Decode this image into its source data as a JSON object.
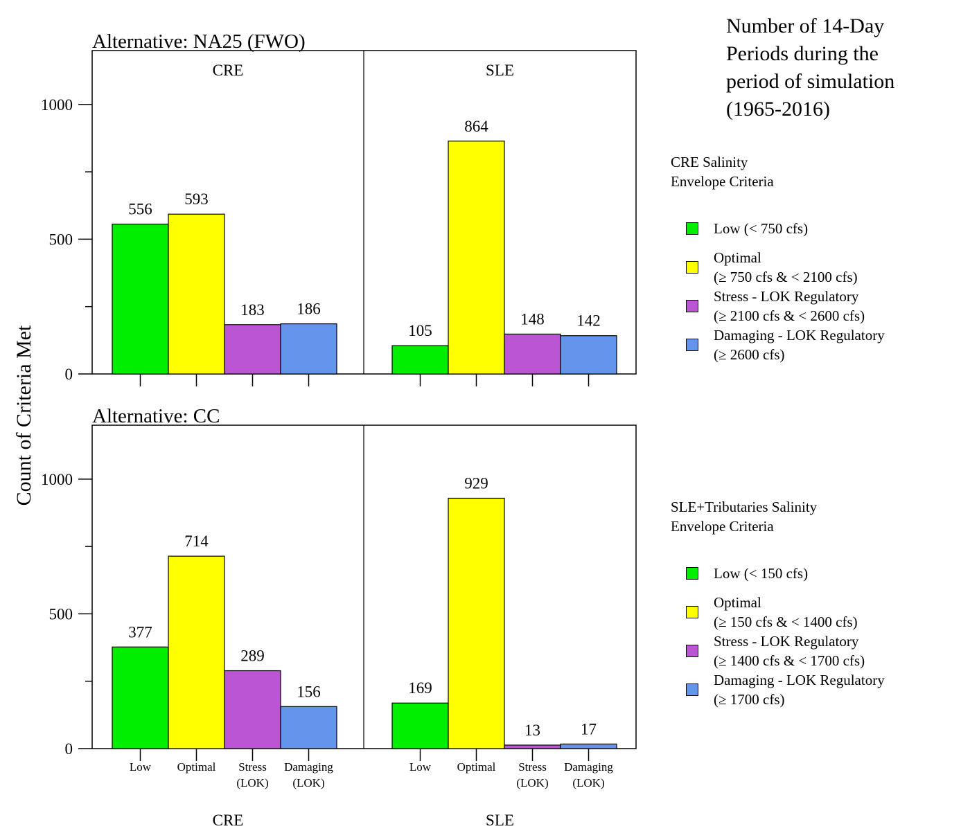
{
  "title_lines": [
    "Number of 14-Day",
    "Periods during the",
    "period of simulation",
    "(1965-2016)"
  ],
  "ylabel": "Count of Criteria Met",
  "colors": {
    "Low": "#00ee00",
    "Optimal": "#ffff00",
    "Stress": "#bb55d3",
    "Damaging": "#6495ed"
  },
  "legend_cre": {
    "heading": [
      "CRE Salinity",
      "Envelope Criteria"
    ],
    "items": [
      {
        "key": "Low",
        "lines": [
          "Low (< 750 cfs)"
        ]
      },
      {
        "key": "Optimal",
        "lines": [
          "Optimal",
          "(≥ 750 cfs & < 2100 cfs)"
        ]
      },
      {
        "key": "Stress",
        "lines": [
          "Stress - LOK Regulatory",
          "(≥ 2100 cfs & < 2600 cfs)"
        ]
      },
      {
        "key": "Damaging",
        "lines": [
          "Damaging - LOK Regulatory",
          "(≥ 2600 cfs)"
        ]
      }
    ]
  },
  "legend_sle": {
    "heading": [
      "SLE+Tributaries Salinity",
      "Envelope Criteria"
    ],
    "items": [
      {
        "key": "Low",
        "lines": [
          "Low (< 150 cfs)"
        ]
      },
      {
        "key": "Optimal",
        "lines": [
          "Optimal",
          "(≥ 150 cfs & < 1400 cfs)"
        ]
      },
      {
        "key": "Stress",
        "lines": [
          "Stress - LOK Regulatory",
          "(≥ 1400 cfs & < 1700 cfs)"
        ]
      },
      {
        "key": "Damaging",
        "lines": [
          "Damaging - LOK Regulatory",
          "(≥ 1700 cfs)"
        ]
      }
    ]
  },
  "chart_data": {
    "type": "bar",
    "categories": [
      "Low",
      "Optimal",
      "Stress (LOK)",
      "Damaging (LOK)"
    ],
    "category_keys": [
      "Low",
      "Optimal",
      "Stress",
      "Damaging"
    ],
    "tick_labels": [
      [
        "Low"
      ],
      [
        "Optimal"
      ],
      [
        "Stress",
        "(LOK)"
      ],
      [
        "Damaging",
        "(LOK)"
      ]
    ],
    "estuaries": [
      "CRE",
      "SLE"
    ],
    "ylim": [
      0,
      1200
    ],
    "yticks": [
      0,
      500,
      1000
    ],
    "ytick_minor": [
      250,
      750
    ],
    "panels": [
      {
        "alternative": "Alternative: NA25 (FWO)",
        "series": [
          {
            "name": "CRE",
            "values": [
              556,
              593,
              183,
              186
            ]
          },
          {
            "name": "SLE",
            "values": [
              105,
              864,
              148,
              142
            ]
          }
        ]
      },
      {
        "alternative": "Alternative: CC",
        "series": [
          {
            "name": "CRE",
            "values": [
              377,
              714,
              289,
              156
            ]
          },
          {
            "name": "SLE",
            "values": [
              169,
              929,
              13,
              17
            ]
          }
        ]
      }
    ]
  }
}
